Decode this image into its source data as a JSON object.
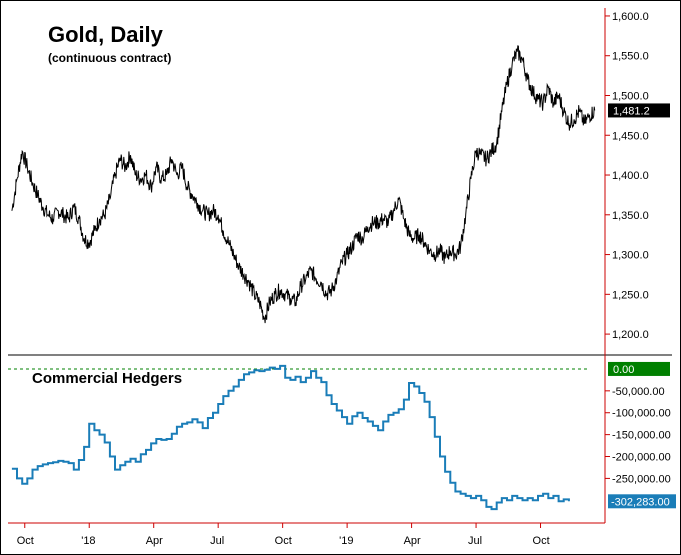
{
  "chart_data": [
    {
      "type": "line",
      "title": "Gold, Daily",
      "subtitle": "(continuous contract)",
      "y_range": [
        1180,
        1610
      ],
      "y_ticks": [
        "1,200.0",
        "1,250.0",
        "1,300.0",
        "1,350.0",
        "1,400.0",
        "1,450.0",
        "1,500.0",
        "1,550.0",
        "1,600.0"
      ],
      "y_tick_values": [
        1200,
        1250,
        1300,
        1350,
        1400,
        1450,
        1500,
        1550,
        1600
      ],
      "last_value_label": "1,481.2",
      "last_value": 1481.2,
      "series": [
        {
          "values": [
            [
              2017.7,
              1355
            ],
            [
              2017.72,
              1395
            ],
            [
              2017.74,
              1430
            ],
            [
              2017.76,
              1410
            ],
            [
              2017.78,
              1390
            ],
            [
              2017.8,
              1375
            ],
            [
              2017.82,
              1360
            ],
            [
              2017.84,
              1350
            ],
            [
              2017.86,
              1345
            ],
            [
              2017.88,
              1355
            ],
            [
              2017.9,
              1350
            ],
            [
              2017.92,
              1345
            ],
            [
              2017.94,
              1360
            ],
            [
              2017.96,
              1345
            ],
            [
              2017.98,
              1320
            ],
            [
              2018.0,
              1315
            ],
            [
              2018.02,
              1330
            ],
            [
              2018.04,
              1345
            ],
            [
              2018.06,
              1350
            ],
            [
              2018.08,
              1370
            ],
            [
              2018.1,
              1400
            ],
            [
              2018.12,
              1420
            ],
            [
              2018.14,
              1410
            ],
            [
              2018.16,
              1425
            ],
            [
              2018.18,
              1400
            ],
            [
              2018.2,
              1395
            ],
            [
              2018.22,
              1400
            ],
            [
              2018.24,
              1385
            ],
            [
              2018.26,
              1410
            ],
            [
              2018.28,
              1395
            ],
            [
              2018.3,
              1400
            ],
            [
              2018.32,
              1420
            ],
            [
              2018.34,
              1400
            ],
            [
              2018.36,
              1410
            ],
            [
              2018.38,
              1385
            ],
            [
              2018.4,
              1375
            ],
            [
              2018.42,
              1365
            ],
            [
              2018.44,
              1355
            ],
            [
              2018.46,
              1350
            ],
            [
              2018.48,
              1355
            ],
            [
              2018.5,
              1350
            ],
            [
              2018.52,
              1330
            ],
            [
              2018.54,
              1315
            ],
            [
              2018.56,
              1300
            ],
            [
              2018.58,
              1285
            ],
            [
              2018.6,
              1275
            ],
            [
              2018.62,
              1265
            ],
            [
              2018.64,
              1250
            ],
            [
              2018.66,
              1240
            ],
            [
              2018.68,
              1220
            ],
            [
              2018.7,
              1240
            ],
            [
              2018.72,
              1250
            ],
            [
              2018.74,
              1255
            ],
            [
              2018.76,
              1250
            ],
            [
              2018.78,
              1245
            ],
            [
              2018.8,
              1240
            ],
            [
              2018.82,
              1260
            ],
            [
              2018.84,
              1270
            ],
            [
              2018.86,
              1280
            ],
            [
              2018.88,
              1270
            ],
            [
              2018.9,
              1265
            ],
            [
              2018.92,
              1250
            ],
            [
              2018.94,
              1255
            ],
            [
              2018.96,
              1270
            ],
            [
              2018.98,
              1290
            ],
            [
              2019.0,
              1300
            ],
            [
              2019.02,
              1310
            ],
            [
              2019.04,
              1325
            ],
            [
              2019.06,
              1320
            ],
            [
              2019.08,
              1335
            ],
            [
              2019.1,
              1340
            ],
            [
              2019.12,
              1340
            ],
            [
              2019.14,
              1345
            ],
            [
              2019.16,
              1340
            ],
            [
              2019.18,
              1355
            ],
            [
              2019.2,
              1370
            ],
            [
              2019.22,
              1345
            ],
            [
              2019.24,
              1325
            ],
            [
              2019.26,
              1320
            ],
            [
              2019.28,
              1325
            ],
            [
              2019.3,
              1315
            ],
            [
              2019.32,
              1305
            ],
            [
              2019.34,
              1300
            ],
            [
              2019.36,
              1305
            ],
            [
              2019.38,
              1295
            ],
            [
              2019.4,
              1305
            ],
            [
              2019.42,
              1300
            ],
            [
              2019.44,
              1310
            ],
            [
              2019.46,
              1350
            ],
            [
              2019.48,
              1395
            ],
            [
              2019.5,
              1430
            ],
            [
              2019.52,
              1425
            ],
            [
              2019.54,
              1420
            ],
            [
              2019.56,
              1430
            ],
            [
              2019.58,
              1440
            ],
            [
              2019.6,
              1480
            ],
            [
              2019.62,
              1515
            ],
            [
              2019.64,
              1540
            ],
            [
              2019.66,
              1555
            ],
            [
              2019.68,
              1545
            ],
            [
              2019.7,
              1520
            ],
            [
              2019.72,
              1505
            ],
            [
              2019.74,
              1495
            ],
            [
              2019.76,
              1490
            ],
            [
              2019.78,
              1510
            ],
            [
              2019.8,
              1490
            ],
            [
              2019.82,
              1500
            ],
            [
              2019.84,
              1480
            ],
            [
              2019.86,
              1465
            ],
            [
              2019.88,
              1470
            ],
            [
              2019.9,
              1480
            ],
            [
              2019.92,
              1465
            ],
            [
              2019.94,
              1475
            ],
            [
              2019.96,
              1481.2
            ]
          ]
        }
      ]
    },
    {
      "type": "line",
      "label": "Commercial Hedgers",
      "y_range": [
        -345000,
        25000
      ],
      "y_ticks": [
        "0.00",
        "-50,000.00",
        "-100,000.00",
        "-150,000.00",
        "-200,000.00",
        "-250,000.00"
      ],
      "y_tick_values": [
        0,
        -50000,
        -100000,
        -150000,
        -200000,
        -250000
      ],
      "zero_label": "0.00",
      "zero_color": "#008000",
      "last_value_label": "-302,283.00",
      "last_value": -302283,
      "series_color": "#1a7db8",
      "series": [
        {
          "values": [
            [
              2017.7,
              -228000
            ],
            [
              2017.72,
              -250000
            ],
            [
              2017.74,
              -262000
            ],
            [
              2017.76,
              -250000
            ],
            [
              2017.78,
              -230000
            ],
            [
              2017.8,
              -222000
            ],
            [
              2017.82,
              -218000
            ],
            [
              2017.84,
              -215000
            ],
            [
              2017.86,
              -213000
            ],
            [
              2017.88,
              -210000
            ],
            [
              2017.9,
              -212000
            ],
            [
              2017.92,
              -215000
            ],
            [
              2017.94,
              -230000
            ],
            [
              2017.96,
              -208000
            ],
            [
              2017.98,
              -178000
            ],
            [
              2018.0,
              -125000
            ],
            [
              2018.02,
              -140000
            ],
            [
              2018.04,
              -150000
            ],
            [
              2018.06,
              -168000
            ],
            [
              2018.08,
              -200000
            ],
            [
              2018.1,
              -230000
            ],
            [
              2018.12,
              -220000
            ],
            [
              2018.14,
              -212000
            ],
            [
              2018.16,
              -205000
            ],
            [
              2018.18,
              -212000
            ],
            [
              2018.2,
              -195000
            ],
            [
              2018.22,
              -185000
            ],
            [
              2018.24,
              -170000
            ],
            [
              2018.26,
              -160000
            ],
            [
              2018.28,
              -162000
            ],
            [
              2018.3,
              -160000
            ],
            [
              2018.32,
              -148000
            ],
            [
              2018.34,
              -132000
            ],
            [
              2018.36,
              -125000
            ],
            [
              2018.38,
              -122000
            ],
            [
              2018.4,
              -115000
            ],
            [
              2018.42,
              -122000
            ],
            [
              2018.44,
              -135000
            ],
            [
              2018.46,
              -112000
            ],
            [
              2018.48,
              -100000
            ],
            [
              2018.5,
              -80000
            ],
            [
              2018.52,
              -62000
            ],
            [
              2018.54,
              -50000
            ],
            [
              2018.56,
              -40000
            ],
            [
              2018.58,
              -25000
            ],
            [
              2018.6,
              -12000
            ],
            [
              2018.62,
              -8000
            ],
            [
              2018.64,
              -3000
            ],
            [
              2018.66,
              -5000
            ],
            [
              2018.68,
              -2000
            ],
            [
              2018.7,
              3000
            ],
            [
              2018.72,
              0
            ],
            [
              2018.74,
              7000
            ],
            [
              2018.76,
              -20000
            ],
            [
              2018.78,
              -25000
            ],
            [
              2018.8,
              -18000
            ],
            [
              2018.82,
              -30000
            ],
            [
              2018.84,
              -20000
            ],
            [
              2018.86,
              -5000
            ],
            [
              2018.88,
              -20000
            ],
            [
              2018.9,
              -30000
            ],
            [
              2018.92,
              -60000
            ],
            [
              2018.94,
              -80000
            ],
            [
              2018.96,
              -95000
            ],
            [
              2018.98,
              -110000
            ],
            [
              2019.0,
              -125000
            ],
            [
              2019.02,
              -108000
            ],
            [
              2019.04,
              -100000
            ],
            [
              2019.06,
              -112000
            ],
            [
              2019.08,
              -120000
            ],
            [
              2019.1,
              -130000
            ],
            [
              2019.12,
              -140000
            ],
            [
              2019.14,
              -120000
            ],
            [
              2019.16,
              -105000
            ],
            [
              2019.18,
              -100000
            ],
            [
              2019.2,
              -92000
            ],
            [
              2019.22,
              -70000
            ],
            [
              2019.24,
              -32000
            ],
            [
              2019.26,
              -40000
            ],
            [
              2019.28,
              -55000
            ],
            [
              2019.3,
              -75000
            ],
            [
              2019.32,
              -110000
            ],
            [
              2019.34,
              -155000
            ],
            [
              2019.36,
              -200000
            ],
            [
              2019.38,
              -235000
            ],
            [
              2019.4,
              -260000
            ],
            [
              2019.42,
              -280000
            ],
            [
              2019.44,
              -285000
            ],
            [
              2019.46,
              -290000
            ],
            [
              2019.48,
              -295000
            ],
            [
              2019.5,
              -290000
            ],
            [
              2019.52,
              -300000
            ],
            [
              2019.54,
              -315000
            ],
            [
              2019.56,
              -320000
            ],
            [
              2019.58,
              -305000
            ],
            [
              2019.6,
              -295000
            ],
            [
              2019.62,
              -300000
            ],
            [
              2019.64,
              -290000
            ],
            [
              2019.66,
              -295000
            ],
            [
              2019.68,
              -300000
            ],
            [
              2019.7,
              -295000
            ],
            [
              2019.72,
              -300000
            ],
            [
              2019.74,
              -290000
            ],
            [
              2019.76,
              -285000
            ],
            [
              2019.78,
              -295000
            ],
            [
              2019.8,
              -290000
            ],
            [
              2019.82,
              -302000
            ],
            [
              2019.84,
              -298000
            ],
            [
              2019.86,
              -302283
            ]
          ]
        }
      ]
    }
  ],
  "x_axis": {
    "range": [
      2017.685,
      2020.0
    ],
    "ticks": [
      {
        "label": "Oct",
        "x": 2017.75
      },
      {
        "label": "'18",
        "x": 2018.0
      },
      {
        "label": "Apr",
        "x": 2018.25
      },
      {
        "label": "Jul",
        "x": 2018.5
      },
      {
        "label": "Oct",
        "x": 2018.75
      },
      {
        "label": "'19",
        "x": 2019.0
      },
      {
        "label": "Apr",
        "x": 2019.25
      },
      {
        "label": "Jul",
        "x": 2019.5
      },
      {
        "label": "Oct",
        "x": 2019.75
      }
    ]
  }
}
